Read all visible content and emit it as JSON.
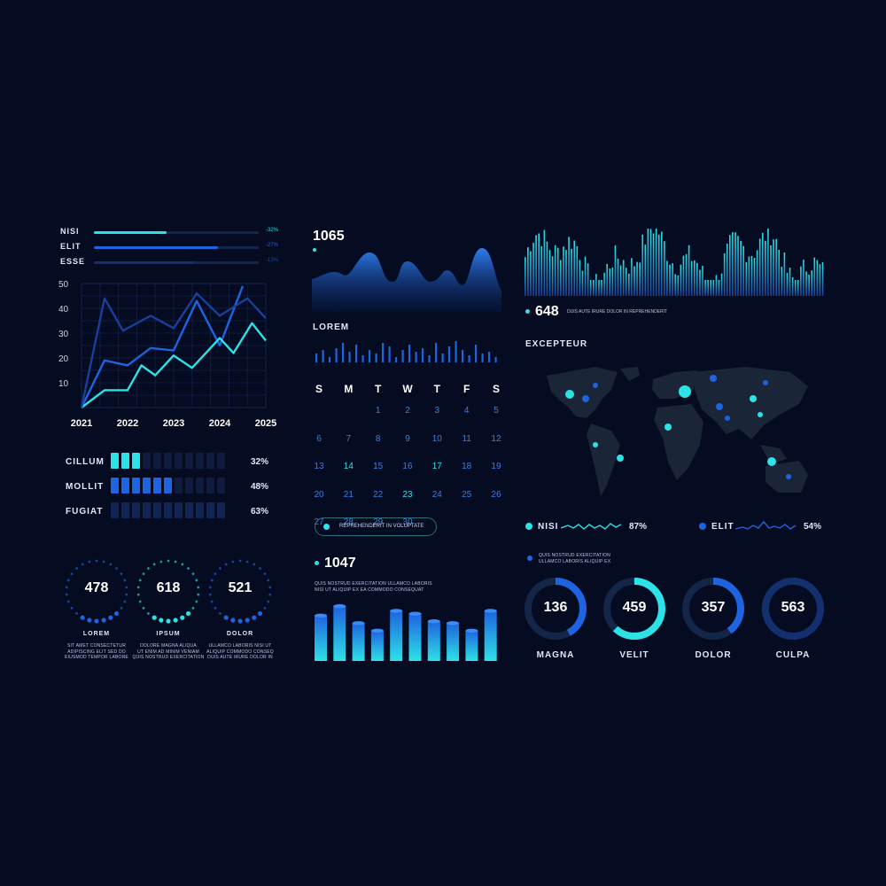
{
  "colors": {
    "bg": "#050b20",
    "cyan": "#2de2e6",
    "blue": "#1e63e0",
    "mid": "#1a3f9a",
    "dim": "#14244c"
  },
  "top_bars": [
    {
      "label": "NISI",
      "value": 0.52,
      "pct": "-32%",
      "color": "#2de2e6"
    },
    {
      "label": "ELIT",
      "value": 0.73,
      "pct": "-27%",
      "color": "#1e63e0"
    },
    {
      "label": "ESSE",
      "value": 0.59,
      "pct": "-13%",
      "color": "#14306e"
    }
  ],
  "line_chart": {
    "type": "line",
    "x": [
      2021,
      2022,
      2023,
      2024,
      2025
    ],
    "y_ticks": [
      "50",
      "40",
      "30",
      "20",
      "10"
    ],
    "ylim": [
      0,
      50
    ],
    "series": [
      {
        "color": "#1e63e0",
        "values": [
          [
            2021.0,
            0
          ],
          [
            2021.5,
            19
          ],
          [
            2022.0,
            17
          ],
          [
            2022.5,
            24
          ],
          [
            2023.0,
            23
          ],
          [
            2023.5,
            43
          ],
          [
            2024.0,
            25
          ],
          [
            2024.5,
            49
          ]
        ]
      },
      {
        "color": "#2de2e6",
        "values": [
          [
            2021.0,
            0
          ],
          [
            2021.5,
            7
          ],
          [
            2022.0,
            7
          ],
          [
            2022.3,
            17
          ],
          [
            2022.6,
            13
          ],
          [
            2023.0,
            21
          ],
          [
            2023.4,
            16
          ],
          [
            2024.0,
            28
          ],
          [
            2024.3,
            22
          ],
          [
            2024.7,
            34
          ],
          [
            2025.0,
            27
          ]
        ]
      },
      {
        "color": "#1a3f9a",
        "values": [
          [
            2021.0,
            0
          ],
          [
            2021.5,
            44
          ],
          [
            2021.9,
            31
          ],
          [
            2022.5,
            37
          ],
          [
            2023.0,
            32
          ],
          [
            2023.5,
            46
          ],
          [
            2024.0,
            37
          ],
          [
            2024.6,
            44
          ],
          [
            2025.0,
            36
          ]
        ]
      }
    ]
  },
  "seg_bars": [
    {
      "label": "CILLUM",
      "pct": "32%",
      "on": 3,
      "color": "#2de2e6"
    },
    {
      "label": "MOLLIT",
      "pct": "48%",
      "on": 6,
      "color": "#1e63e0"
    },
    {
      "label": "FUGIAT",
      "pct": "63%",
      "on": 0,
      "color": "#14306e"
    }
  ],
  "dot_rings": [
    {
      "num": "478",
      "label": "LOREM",
      "desc": [
        "SIT AMET CONSECTETUR",
        "ADIPISCING ELIT SED DO",
        "EIUSMOD TEMPOR LABORE"
      ],
      "color": "#1e63e0"
    },
    {
      "num": "618",
      "label": "IPSUM",
      "desc": [
        "DOLORE MAGNA ALIQUA",
        "UT ENIM AD MINIM VENIAM",
        "QUIS NOSTRUD EXERCITATION"
      ],
      "color": "#2de2e6"
    },
    {
      "num": "521",
      "label": "DOLOR",
      "desc": [
        "ULLAMCO LABORIS NISI UT",
        "ALIQUIP COMMODO CONSEQ",
        "DUIS AUTE IRURE DOLOR IN"
      ],
      "color": "#1e63e0"
    }
  ],
  "wave": {
    "num": "1065"
  },
  "lorem_title": "LOREM",
  "calendar": {
    "days": [
      "S",
      "M",
      "T",
      "W",
      "T",
      "F",
      "S"
    ],
    "weeks": [
      [
        "",
        "",
        "1",
        "2",
        "3",
        "4",
        "5"
      ],
      [
        "6",
        "7",
        "8",
        "9",
        "10",
        "11",
        "12"
      ],
      [
        "13",
        "14",
        "15",
        "16",
        "17",
        "18",
        "19"
      ],
      [
        "20",
        "21",
        "22",
        "23",
        "24",
        "25",
        "26"
      ],
      [
        "27",
        "28",
        "29",
        "30",
        "",
        "",
        ""
      ]
    ],
    "highlight": [
      "14",
      "17",
      "23"
    ],
    "pill": "REPREHENDERIT IN VOLUPTATE"
  },
  "block_bars": {
    "num": "1047",
    "desc": [
      "QUIS NOSTRUD EXERCITATION ULLAMCO LABORIS",
      "NISI UT ALIQUIP EX EA COMMODO CONSEQUAT"
    ],
    "values": [
      48,
      58,
      40,
      32,
      53,
      50,
      42,
      40,
      32,
      53
    ]
  },
  "freq": {
    "num": "648",
    "text": "DUIS AUTE IRURE DOLOR IN REPREHENDERIT"
  },
  "map": {
    "title": "EXCEPTEUR"
  },
  "legend": [
    {
      "label": "NISI",
      "pct": "87%",
      "color": "#2de2e6"
    },
    {
      "label": "ELIT",
      "pct": "54%",
      "color": "#1e63e0"
    }
  ],
  "legend_note": [
    "QUIS NOSTRUD EXERCITATION",
    "ULLAMCO LABORIS ALIQUIP EX"
  ],
  "gauges": [
    {
      "num": "136",
      "label": "MAGNA",
      "value": 0.42,
      "color": "#1e63e0"
    },
    {
      "num": "459",
      "label": "VELIT",
      "value": 0.62,
      "color": "#2de2e6"
    },
    {
      "num": "357",
      "label": "DOLOR",
      "value": 0.4,
      "color": "#1e63e0"
    },
    {
      "num": "563",
      "label": "CULPA",
      "value": 1.0,
      "color": "#142f6e"
    }
  ]
}
